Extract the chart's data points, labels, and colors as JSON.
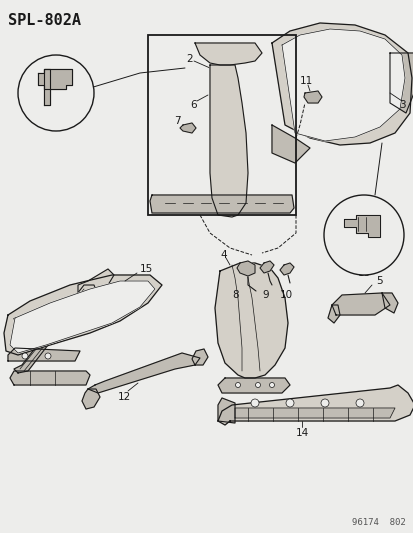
{
  "title": "SPL-802A",
  "footer": "96174  802",
  "bg_color": "#ededeb",
  "line_color": "#1a1a1a",
  "part_fill": "#d4d0c8",
  "part_fill2": "#c0bcb4",
  "part_fill3": "#b8b4ac"
}
